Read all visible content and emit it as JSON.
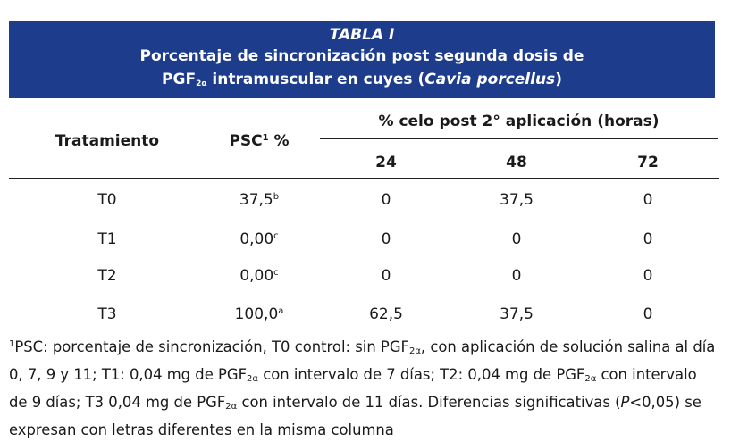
{
  "title": {
    "line1": "TABLA I",
    "line2": "Porcentaje de sincronización post segunda dosis de",
    "line3_prefix": "PGF",
    "line3_sub": "2α",
    "line3_mid": " intramuscular en cuyes (",
    "line3_italic": "Cavia porcellus",
    "line3_suffix": ")"
  },
  "header": {
    "col1": "Tratamiento",
    "col2_label": "PSC",
    "col2_sup": "1",
    "col2_unit": " %",
    "group": "% celo post 2° aplicación (horas)",
    "h24": "24",
    "h48": "48",
    "h72": "72"
  },
  "rows": [
    {
      "trat": "T0",
      "psc": "37,5",
      "sup": "b",
      "h24": "0",
      "h48": "37,5",
      "h72": "0"
    },
    {
      "trat": "T1",
      "psc": "0,00",
      "sup": "c",
      "h24": "0",
      "h48": "0",
      "h72": "0"
    },
    {
      "trat": "T2",
      "psc": "0,00",
      "sup": "c",
      "h24": "0",
      "h48": "0",
      "h72": "0"
    },
    {
      "trat": "T3",
      "psc": "100,0",
      "sup": "a",
      "h24": "62,5",
      "h48": "37,5",
      "h72": "0"
    }
  ],
  "note": {
    "sup1": "1",
    "p1": "PSC: porcentaje de sincronización, T0 control: sin PGF",
    "sub": "2α",
    "p2": ", con aplicación de solución salina al día 0, 7, 9 y 11; T1: 0,04 mg de PGF",
    "p3": " con intervalo de 7 días; T2: 0,04 mg de PGF",
    "p4": " con intervalo de 9 días; T3 0,04 mg de PGF",
    "p5": " con intervalo de 11 días. Diferencias significativas (",
    "p_italic": "P",
    "p6": "<0,05) se expresan con letras diferentes en la misma columna"
  },
  "colors": {
    "title_bg": "#1e3c8c",
    "title_fg": "#ffffff"
  }
}
